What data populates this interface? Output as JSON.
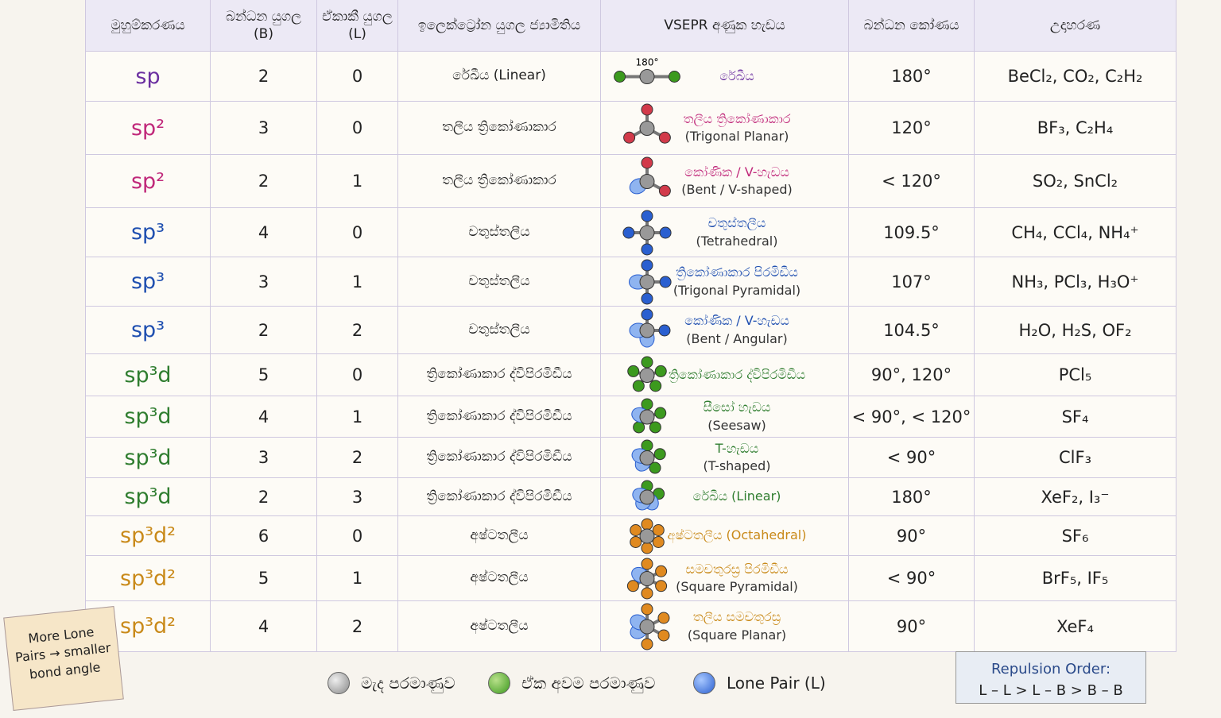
{
  "table": {
    "header": [
      "මුහුම්කරණය",
      "බන්ධන යුගල (B)",
      "ඒකාකී යුගල (L)",
      "ඉලෙක්ට්‍රෝන යුගල ජ්‍යාමිතිය",
      "VSEPR අණුක හැඩය",
      "බන්ධන කෝණය",
      "උදාහරණ"
    ],
    "rows": [
      {
        "hybrid": "sp",
        "B": 2,
        "L": 0,
        "geometry": "රේඛීය (Linear)",
        "icon_label": "180°",
        "shape": [
          "රේඛීය"
        ],
        "angle": "180°",
        "examples": "BeCl₂, CO₂, C₂H₂"
      },
      {
        "hybrid": "sp²",
        "B": 3,
        "L": 0,
        "geometry": "තලීය ත්‍රිකෝණාකාර",
        "shape": [
          "තලීය ත්‍රිකෝණාකාර",
          "(Trigonal Planar)"
        ],
        "angle": "120°",
        "examples": "BF₃, C₂H₄"
      },
      {
        "hybrid": "sp²",
        "B": 2,
        "L": 1,
        "geometry": "තලීය ත්‍රිකෝණාකාර",
        "shape": [
          "කෝණික / V-හැඩය",
          "(Bent / V-shaped)"
        ],
        "angle": "< 120°",
        "examples": "SO₂, SnCl₂"
      },
      {
        "hybrid": "sp³",
        "B": 4,
        "L": 0,
        "geometry": "චතුස්තලීය",
        "shape": [
          "චතුස්තලීය",
          "(Tetrahedral)"
        ],
        "angle": "109.5°",
        "examples": "CH₄, CCl₄, NH₄⁺"
      },
      {
        "hybrid": "sp³",
        "B": 3,
        "L": 1,
        "geometry": "චතුස්තලීය",
        "shape": [
          "ත්‍රිකෝණාකාර පිරමිඩීය",
          "(Trigonal Pyramidal)"
        ],
        "angle": "107°",
        "examples": "NH₃, PCl₃, H₃O⁺"
      },
      {
        "hybrid": "sp³",
        "B": 2,
        "L": 2,
        "geometry": "චතුස්තලීය",
        "shape": [
          "කෝණික / V-හැඩය",
          "(Bent / Angular)"
        ],
        "angle": "104.5°",
        "examples": "H₂O, H₂S, OF₂"
      },
      {
        "hybrid": "sp³d",
        "B": 5,
        "L": 0,
        "geometry": "ත්‍රිකෝණාකාර ද්විපිරමිඩීය",
        "shape": [
          "ත්‍රිකෝණාකාර ද්විපිරමිඩීය"
        ],
        "angle": "90°, 120°",
        "examples": "PCl₅"
      },
      {
        "hybrid": "sp³d",
        "B": 4,
        "L": 1,
        "geometry": "ත්‍රිකෝණාකාර ද්විපිරමිඩීය",
        "shape": [
          "සීසෝ හැඩය",
          "(Seesaw)"
        ],
        "angle": "< 90°, < 120°",
        "examples": "SF₄"
      },
      {
        "hybrid": "sp³d",
        "B": 3,
        "L": 2,
        "geometry": "ත්‍රිකෝණාකාර ද්විපිරමිඩීය",
        "shape": [
          "T-හැඩය",
          "(T-shaped)"
        ],
        "angle": "< 90°",
        "examples": "ClF₃"
      },
      {
        "hybrid": "sp³d",
        "B": 2,
        "L": 3,
        "geometry": "ත්‍රිකෝණාකාර ද්විපිරමිඩීය",
        "shape": [
          "රේඛීය (Linear)"
        ],
        "angle": "180°",
        "examples": "XeF₂, I₃⁻"
      },
      {
        "hybrid": "sp³d²",
        "B": 6,
        "L": 0,
        "geometry": "අෂ්ටතලීය",
        "shape": [
          "අෂ්ටතලීය (Octahedral)"
        ],
        "angle": "90°",
        "examples": "SF₆"
      },
      {
        "hybrid": "sp³d²",
        "B": 5,
        "L": 1,
        "geometry": "අෂ්ටතලීය",
        "shape": [
          "සමචතුරස්‍ර පිරමිඩීය",
          "(Square Pyramidal)"
        ],
        "angle": "< 90°",
        "examples": "BrF₅, IF₅"
      },
      {
        "hybrid": "sp³d²",
        "B": 4,
        "L": 2,
        "geometry": "අෂ්ටතලීය",
        "shape": [
          "තලීය සමචතුරස්‍ර",
          "(Square Planar)"
        ],
        "angle": "90°",
        "examples": "XeF₄"
      }
    ]
  },
  "legend": [
    "මැද පරමාණුව",
    "ඒක අවම පරමාණුව",
    "Lone Pair (L)"
  ],
  "note": "More Lone Pairs → smaller bond angle",
  "repulsion": {
    "title": "Repulsion Order:",
    "order": "L – L > L – B > B – B"
  }
}
